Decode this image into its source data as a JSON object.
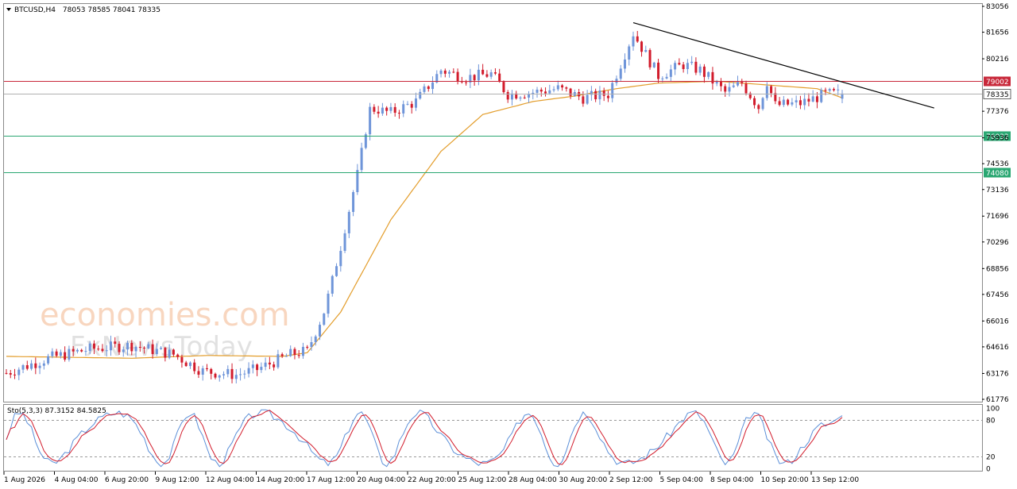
{
  "header": {
    "symbol": "BTCUSD,H4",
    "ohlc": "78053 78585 78041 78335"
  },
  "watermark": {
    "brand": "economies.com",
    "sub": "FxNewsToday"
  },
  "colors": {
    "bull": "#6f95d9",
    "bear": "#d21c2c",
    "ma": "#e39d2b",
    "resistance": "#c8283a",
    "support": "#2aa772",
    "trendline": "#000000",
    "current": "#b0b0b0",
    "stoch_main": "#5b8fd8",
    "stoch_signal": "#d21c2c"
  },
  "chart_data": {
    "type": "candlestick",
    "title": "BTCUSD,H4",
    "ylim": [
      61776,
      83056
    ],
    "y_ticks": [
      "83056",
      "81656",
      "80216",
      "78816",
      "77376",
      "75936",
      "74536",
      "73136",
      "71696",
      "70296",
      "68856",
      "67456",
      "66016",
      "64616",
      "63176",
      "61776"
    ],
    "x_ticks": [
      "1 Aug 2026",
      "4 Aug 04:00",
      "6 Aug 20:00",
      "9 Aug 12:00",
      "12 Aug 04:00",
      "14 Aug 20:00",
      "17 Aug 12:00",
      "20 Aug 04:00",
      "22 Aug 20:00",
      "25 Aug 12:00",
      "28 Aug 04:00",
      "30 Aug 20:00",
      "2 Sep 12:00",
      "5 Sep 04:00",
      "8 Sep 04:00",
      "10 Sep 20:00",
      "13 Sep 12:00"
    ],
    "price_path": [
      [
        0,
        63200
      ],
      [
        10,
        64000
      ],
      [
        20,
        64500
      ],
      [
        30,
        64700
      ],
      [
        40,
        64200
      ],
      [
        47,
        63300
      ],
      [
        55,
        63100
      ],
      [
        60,
        63400
      ],
      [
        68,
        64200
      ],
      [
        72,
        64400
      ],
      [
        76,
        66500
      ],
      [
        80,
        70000
      ],
      [
        84,
        74000
      ],
      [
        87,
        77500
      ],
      [
        92,
        77300
      ],
      [
        98,
        77900
      ],
      [
        104,
        79600
      ],
      [
        110,
        79200
      ],
      [
        116,
        79400
      ],
      [
        120,
        78300
      ],
      [
        126,
        78400
      ],
      [
        132,
        78600
      ],
      [
        138,
        78100
      ],
      [
        144,
        78300
      ],
      [
        150,
        81600
      ],
      [
        156,
        79300
      ],
      [
        162,
        79900
      ],
      [
        166,
        79600
      ],
      [
        172,
        78400
      ],
      [
        176,
        78900
      ],
      [
        180,
        77600
      ],
      [
        182,
        79000
      ],
      [
        184,
        77700
      ],
      [
        190,
        77800
      ],
      [
        196,
        78300
      ],
      [
        200,
        78335
      ]
    ],
    "levels": [
      {
        "label": "79002",
        "value": 79002,
        "kind": "resistance"
      },
      {
        "label": "76032",
        "value": 76032,
        "kind": "support"
      },
      {
        "label": "74080",
        "value": 74080,
        "kind": "support"
      }
    ],
    "current_price": {
      "label": "78335",
      "value": 78335
    },
    "trendline": {
      "from": [
        150,
        82170
      ],
      "to": [
        222,
        77550
      ]
    },
    "ma_path": [
      [
        0,
        64100
      ],
      [
        30,
        64000
      ],
      [
        48,
        64150
      ],
      [
        66,
        64100
      ],
      [
        72,
        64300
      ],
      [
        80,
        66500
      ],
      [
        92,
        71500
      ],
      [
        104,
        75200
      ],
      [
        114,
        77200
      ],
      [
        126,
        77900
      ],
      [
        136,
        78200
      ],
      [
        146,
        78600
      ],
      [
        156,
        78900
      ],
      [
        170,
        79000
      ],
      [
        182,
        78800
      ],
      [
        194,
        78600
      ],
      [
        200,
        78100
      ]
    ],
    "stochastic": {
      "label": "Sto(5,3,3) 87.3152 84.5825",
      "levels": [
        "100",
        "80",
        "20",
        "0"
      ],
      "main_last": 87.3152,
      "signal_last": 84.5825
    }
  }
}
